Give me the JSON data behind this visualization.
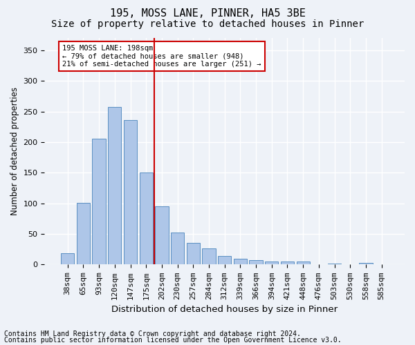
{
  "title1": "195, MOSS LANE, PINNER, HA5 3BE",
  "title2": "Size of property relative to detached houses in Pinner",
  "xlabel": "Distribution of detached houses by size in Pinner",
  "ylabel": "Number of detached properties",
  "categories": [
    "38sqm",
    "65sqm",
    "93sqm",
    "120sqm",
    "147sqm",
    "175sqm",
    "202sqm",
    "230sqm",
    "257sqm",
    "284sqm",
    "312sqm",
    "339sqm",
    "366sqm",
    "394sqm",
    "421sqm",
    "448sqm",
    "476sqm",
    "503sqm",
    "530sqm",
    "558sqm",
    "585sqm"
  ],
  "values": [
    18,
    101,
    205,
    257,
    236,
    150,
    95,
    52,
    35,
    26,
    14,
    9,
    7,
    5,
    5,
    5,
    0,
    2,
    0,
    3,
    0
  ],
  "bar_color": "#aec6e8",
  "bar_edge_color": "#5a8fc2",
  "vline_color": "#cc0000",
  "annotation_text": "195 MOSS LANE: 198sqm\n← 79% of detached houses are smaller (948)\n21% of semi-detached houses are larger (251) →",
  "annotation_box_color": "#ffffff",
  "annotation_box_edge_color": "#cc0000",
  "bg_color": "#eef2f8",
  "grid_color": "#ffffff",
  "footer1": "Contains HM Land Registry data © Crown copyright and database right 2024.",
  "footer2": "Contains public sector information licensed under the Open Government Licence v3.0.",
  "ylim": [
    0,
    370
  ],
  "yticks": [
    0,
    50,
    100,
    150,
    200,
    250,
    300,
    350
  ],
  "title1_fontsize": 11,
  "title2_fontsize": 10,
  "xlabel_fontsize": 9.5,
  "ylabel_fontsize": 8.5,
  "tick_fontsize": 8,
  "footer_fontsize": 7,
  "vline_bar_index": 6
}
